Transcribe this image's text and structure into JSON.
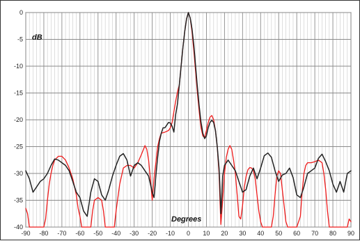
{
  "chart_data": {
    "type": "line",
    "title": "",
    "xlabel": "Degrees",
    "ylabel": "dB",
    "xlim": [
      -90,
      90
    ],
    "ylim": [
      -40,
      0
    ],
    "x_ticks": [
      -90,
      -80,
      -70,
      -60,
      -50,
      -40,
      -30,
      -20,
      -10,
      0,
      10,
      20,
      30,
      40,
      50,
      60,
      70,
      80,
      90
    ],
    "y_ticks": [
      0,
      -5,
      -10,
      -15,
      -20,
      -25,
      -30,
      -35,
      -40
    ],
    "x_tick_labels": [
      "-90",
      "-80",
      "-70",
      "-60",
      "-50",
      "-40",
      "-30",
      "-20",
      "-10",
      "0",
      "10",
      "20",
      "30",
      "40",
      "50",
      "60",
      "70",
      "80",
      "90"
    ],
    "y_tick_labels": [
      "0",
      "-5",
      "-10",
      "-15",
      "-20",
      "-25",
      "-30",
      "-35",
      "-40"
    ],
    "grid": true,
    "minor_x_grid_step": 2,
    "series": [
      {
        "color": "#222222",
        "points": [
          [
            -90,
            -29.5
          ],
          [
            -88,
            -31
          ],
          [
            -86,
            -33.5
          ],
          [
            -84,
            -32.5
          ],
          [
            -82,
            -31.5
          ],
          [
            -80,
            -31
          ],
          [
            -78,
            -30
          ],
          [
            -76,
            -28.5
          ],
          [
            -74,
            -27.3
          ],
          [
            -72,
            -27.5
          ],
          [
            -70,
            -28
          ],
          [
            -68,
            -28.5
          ],
          [
            -66,
            -29.5
          ],
          [
            -64,
            -31.5
          ],
          [
            -62,
            -33.5
          ],
          [
            -60,
            -34.5
          ],
          [
            -58,
            -37
          ],
          [
            -56,
            -38
          ],
          [
            -54,
            -33.5
          ],
          [
            -52,
            -31
          ],
          [
            -50,
            -31.5
          ],
          [
            -48,
            -34
          ],
          [
            -46,
            -35
          ],
          [
            -44,
            -33
          ],
          [
            -42,
            -30.5
          ],
          [
            -40,
            -28.5
          ],
          [
            -38,
            -26.8
          ],
          [
            -36,
            -26.3
          ],
          [
            -34,
            -27.5
          ],
          [
            -32,
            -30.5
          ],
          [
            -30,
            -28.5
          ],
          [
            -28,
            -28
          ],
          [
            -26,
            -28.5
          ],
          [
            -24,
            -29.5
          ],
          [
            -22,
            -30.5
          ],
          [
            -20,
            -33.5
          ],
          [
            -19,
            -34.5
          ],
          [
            -18,
            -30.5
          ],
          [
            -17,
            -27
          ],
          [
            -16,
            -24
          ],
          [
            -15,
            -22.5
          ],
          [
            -14,
            -21.5
          ],
          [
            -13,
            -21.5
          ],
          [
            -12,
            -21
          ],
          [
            -11,
            -20.5
          ],
          [
            -10,
            -20.6
          ],
          [
            -9,
            -21.2
          ],
          [
            -8,
            -22.3
          ],
          [
            -7,
            -19
          ],
          [
            -6,
            -17
          ],
          [
            -5,
            -13.5
          ],
          [
            -4,
            -10
          ],
          [
            -3,
            -6.5
          ],
          [
            -2,
            -3.5
          ],
          [
            -1,
            -1.2
          ],
          [
            0,
            0
          ],
          [
            1,
            -1
          ],
          [
            2,
            -3
          ],
          [
            3,
            -6
          ],
          [
            4,
            -10
          ],
          [
            5,
            -14
          ],
          [
            6,
            -17.5
          ],
          [
            7,
            -20.5
          ],
          [
            8,
            -22.5
          ],
          [
            9,
            -23.5
          ],
          [
            10,
            -23
          ],
          [
            11,
            -21.5
          ],
          [
            12,
            -20.5
          ],
          [
            13,
            -20.1
          ],
          [
            14,
            -20.5
          ],
          [
            15,
            -22
          ],
          [
            16,
            -25
          ],
          [
            17,
            -29
          ],
          [
            17.5,
            -33
          ],
          [
            18,
            -37.5
          ],
          [
            18.5,
            -34.5
          ],
          [
            19,
            -30.5
          ],
          [
            20,
            -28.5
          ],
          [
            22,
            -27.5
          ],
          [
            24,
            -28.5
          ],
          [
            26,
            -29.5
          ],
          [
            28,
            -31.5
          ],
          [
            30,
            -33.5
          ],
          [
            32,
            -33
          ],
          [
            34,
            -30.5
          ],
          [
            36,
            -29
          ],
          [
            38,
            -31
          ],
          [
            40,
            -29
          ],
          [
            42,
            -26.7
          ],
          [
            44,
            -26.2
          ],
          [
            46,
            -27
          ],
          [
            48,
            -29.5
          ],
          [
            50,
            -31.5
          ],
          [
            52,
            -30.3
          ],
          [
            54,
            -30
          ],
          [
            56,
            -29
          ],
          [
            58,
            -30.8
          ],
          [
            60,
            -34
          ],
          [
            62,
            -34.5
          ],
          [
            64,
            -32.5
          ],
          [
            66,
            -30
          ],
          [
            68,
            -29.5
          ],
          [
            70,
            -29
          ],
          [
            72,
            -27.2
          ],
          [
            74,
            -26.4
          ],
          [
            76,
            -27.8
          ],
          [
            78,
            -29.5
          ],
          [
            80,
            -32
          ],
          [
            82,
            -33.5
          ],
          [
            84,
            -31.5
          ],
          [
            86,
            -33.5
          ],
          [
            88,
            -30
          ],
          [
            90,
            -29.5
          ]
        ]
      },
      {
        "color": "#ee1b1b",
        "points": [
          [
            -90,
            -36.5
          ],
          [
            -89,
            -37.5
          ],
          [
            -88,
            -40
          ],
          [
            -85,
            -40
          ],
          [
            -82,
            -40
          ],
          [
            -80,
            -40
          ],
          [
            -79,
            -38.5
          ],
          [
            -78,
            -35
          ],
          [
            -77,
            -32
          ],
          [
            -76,
            -30
          ],
          [
            -75,
            -28.5
          ],
          [
            -74,
            -27.5
          ],
          [
            -72,
            -26.8
          ],
          [
            -70,
            -26.8
          ],
          [
            -68,
            -27.5
          ],
          [
            -66,
            -29
          ],
          [
            -64,
            -31
          ],
          [
            -62,
            -34
          ],
          [
            -61,
            -36.5
          ],
          [
            -60,
            -38
          ],
          [
            -59,
            -40
          ],
          [
            -56,
            -40
          ],
          [
            -54,
            -40
          ],
          [
            -53,
            -37
          ],
          [
            -52,
            -35
          ],
          [
            -50,
            -34.5
          ],
          [
            -48,
            -35
          ],
          [
            -47,
            -37
          ],
          [
            -46,
            -40
          ],
          [
            -42,
            -40
          ],
          [
            -41,
            -40
          ],
          [
            -40,
            -37
          ],
          [
            -38,
            -32
          ],
          [
            -36,
            -29
          ],
          [
            -34,
            -28.5
          ],
          [
            -32,
            -28.5
          ],
          [
            -30,
            -29
          ],
          [
            -28,
            -28
          ],
          [
            -26,
            -26.5
          ],
          [
            -24,
            -24.8
          ],
          [
            -23,
            -25.5
          ],
          [
            -22,
            -27.5
          ],
          [
            -21,
            -31
          ],
          [
            -20,
            -35
          ],
          [
            -19,
            -31
          ],
          [
            -18,
            -28
          ],
          [
            -17,
            -25
          ],
          [
            -16,
            -23.5
          ],
          [
            -15,
            -22.5
          ],
          [
            -13,
            -22.3
          ],
          [
            -11,
            -22
          ],
          [
            -10,
            -21.5
          ],
          [
            -9,
            -20.5
          ],
          [
            -8,
            -18.5
          ],
          [
            -7,
            -16.5
          ],
          [
            -6,
            -14.8
          ],
          [
            -5,
            -13.5
          ],
          [
            -4,
            -10
          ],
          [
            -3,
            -6.5
          ],
          [
            -2,
            -3.5
          ],
          [
            -1,
            -1.2
          ],
          [
            0,
            0
          ],
          [
            1,
            -1
          ],
          [
            2,
            -3.5
          ],
          [
            3,
            -7
          ],
          [
            4,
            -11
          ],
          [
            5,
            -15
          ],
          [
            6,
            -18.5
          ],
          [
            7,
            -21.5
          ],
          [
            8,
            -23
          ],
          [
            9,
            -23.3
          ],
          [
            10,
            -22
          ],
          [
            11,
            -20.5
          ],
          [
            12,
            -19.5
          ],
          [
            13,
            -19.2
          ],
          [
            14,
            -20
          ],
          [
            15,
            -22
          ],
          [
            16,
            -25
          ],
          [
            17,
            -30
          ],
          [
            17.5,
            -35
          ],
          [
            18,
            -39.5
          ],
          [
            19,
            -35
          ],
          [
            20,
            -30
          ],
          [
            21,
            -27
          ],
          [
            22,
            -25.5
          ],
          [
            23,
            -24.8
          ],
          [
            24,
            -25.5
          ],
          [
            25,
            -27.5
          ],
          [
            26,
            -30
          ],
          [
            27,
            -34
          ],
          [
            28,
            -38
          ],
          [
            29,
            -38.5
          ],
          [
            30,
            -36
          ],
          [
            31,
            -32.5
          ],
          [
            32,
            -30.5
          ],
          [
            33,
            -29.3
          ],
          [
            34,
            -28.9
          ],
          [
            35,
            -29
          ],
          [
            36,
            -29.5
          ],
          [
            37,
            -31
          ],
          [
            38,
            -34
          ],
          [
            39,
            -37
          ],
          [
            40,
            -39
          ],
          [
            41,
            -40
          ],
          [
            43,
            -40
          ],
          [
            46,
            -40
          ],
          [
            47,
            -38
          ],
          [
            48,
            -34
          ],
          [
            49,
            -30.5
          ],
          [
            50,
            -29.5
          ],
          [
            51,
            -30
          ],
          [
            52,
            -33
          ],
          [
            53,
            -36
          ],
          [
            54,
            -39
          ],
          [
            55,
            -40
          ],
          [
            60,
            -40
          ],
          [
            62,
            -38
          ],
          [
            63,
            -33.5
          ],
          [
            64,
            -30
          ],
          [
            65,
            -28.5
          ],
          [
            66,
            -28
          ],
          [
            68,
            -28
          ],
          [
            70,
            -27.8
          ],
          [
            72,
            -27.5
          ],
          [
            74,
            -28
          ],
          [
            75,
            -30
          ],
          [
            76,
            -33
          ],
          [
            77,
            -37
          ],
          [
            78,
            -40
          ],
          [
            80,
            -40
          ],
          [
            86,
            -40
          ],
          [
            88,
            -40
          ],
          [
            89,
            -38.5
          ],
          [
            90,
            -39
          ]
        ]
      }
    ]
  }
}
